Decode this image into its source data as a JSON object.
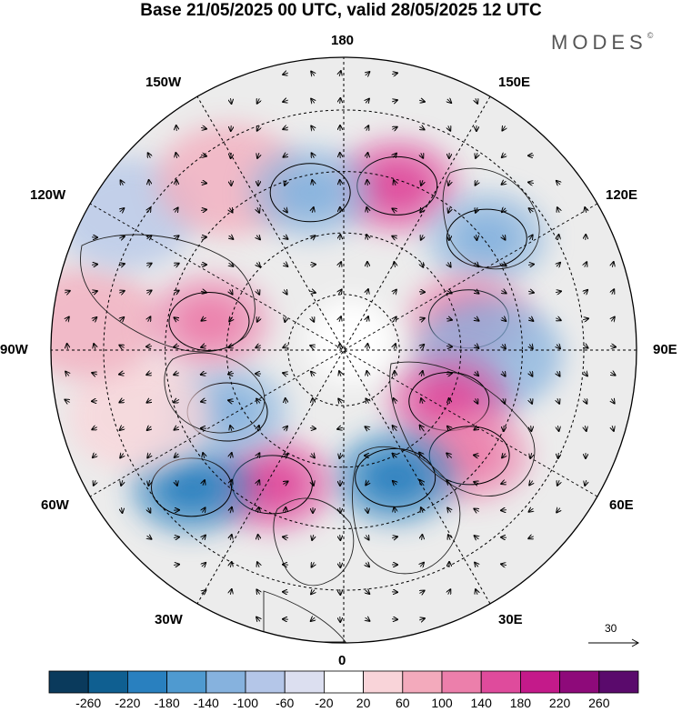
{
  "title": "Base 21/05/2025 00 UTC, valid 28/05/2025 12 UTC",
  "brand": "MODES",
  "brand_mark": "©",
  "lon_labels": {
    "l180": "180",
    "l150e": "150E",
    "l120e": "120E",
    "l90e": "90E",
    "l60e": "60E",
    "l30e": "30E",
    "l0": "0",
    "l30w": "30W",
    "l60w": "60W",
    "l90w": "90W",
    "l120w": "120W",
    "l150w": "150W"
  },
  "reference_vector": {
    "label": "30"
  },
  "colorbar": {
    "labels": [
      "-260",
      "-220",
      "-180",
      "-140",
      "-100",
      "-60",
      "-20",
      "20",
      "60",
      "100",
      "140",
      "180",
      "220",
      "260"
    ],
    "colors": [
      "#0a3a5c",
      "#0f5f91",
      "#2980bf",
      "#4f9ad0",
      "#86b2de",
      "#b4c6e8",
      "#dcdff0",
      "#ffffff",
      "#f9d4d9",
      "#f3aabc",
      "#ec7fab",
      "#df4b9c",
      "#c41a8a",
      "#8e0a7a",
      "#5a0a6c"
    ]
  },
  "anomaly_centers": [
    {
      "lon": 162,
      "r": 0.59,
      "value": 180,
      "color": "#df4b9c"
    },
    {
      "lon": 128,
      "r": 0.62,
      "value": -140,
      "color": "#86b2de"
    },
    {
      "lon": 104,
      "r": 0.44,
      "value": 140,
      "color": "#ec7fab"
    },
    {
      "lon": 88,
      "r": 0.5,
      "value": -100,
      "color": "#86b2de"
    },
    {
      "lon": 64,
      "r": 0.4,
      "value": 180,
      "color": "#df4b9c"
    },
    {
      "lon": 50,
      "r": 0.56,
      "value": 140,
      "color": "#ec7fab"
    },
    {
      "lon": 22,
      "r": 0.47,
      "value": -180,
      "color": "#2980bf"
    },
    {
      "lon": -28,
      "r": 0.52,
      "value": 180,
      "color": "#df4b9c"
    },
    {
      "lon": -48,
      "r": 0.7,
      "value": -180,
      "color": "#2980bf"
    },
    {
      "lon": -62,
      "r": 0.45,
      "value": -140,
      "color": "#86b2de"
    },
    {
      "lon": -72,
      "r": 0.73,
      "value": 60,
      "color": "#f9d4d9"
    },
    {
      "lon": -96,
      "r": 0.88,
      "value": 60,
      "color": "#f3aabc"
    },
    {
      "lon": -102,
      "r": 0.47,
      "value": 140,
      "color": "#ec7fab"
    },
    {
      "lon": -122,
      "r": 0.88,
      "value": -60,
      "color": "#b4c6e8"
    },
    {
      "lon": -146,
      "r": 0.7,
      "value": 60,
      "color": "#f3aabc"
    },
    {
      "lon": -168,
      "r": 0.55,
      "value": -140,
      "color": "#86b2de"
    }
  ]
}
